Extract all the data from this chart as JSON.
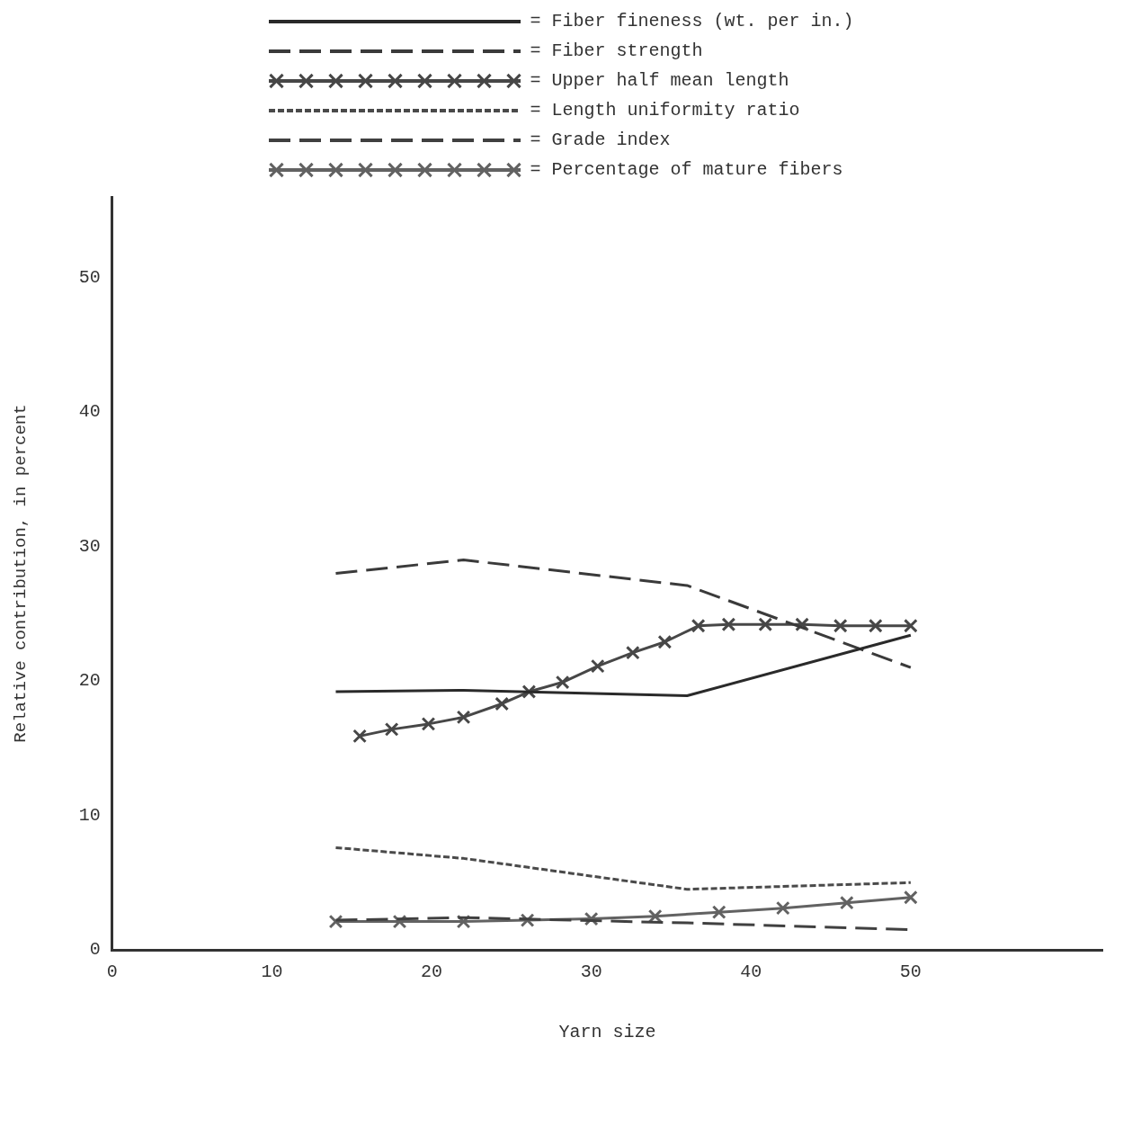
{
  "chart_data": {
    "type": "line",
    "xlabel": "Yarn size",
    "ylabel": "Relative contribution, in percent",
    "xlim": [
      0,
      62
    ],
    "ylim": [
      0,
      56
    ],
    "xticks": [
      0,
      10,
      20,
      30,
      40,
      50
    ],
    "yticks": [
      0,
      10,
      20,
      30,
      40,
      50
    ],
    "grid": false,
    "legend": "top",
    "series": [
      {
        "name": "= Fiber fineness (wt. per in.)",
        "color": "#2a2a2a",
        "line_style": "solid",
        "marker": "none",
        "x": [
          14,
          22,
          36,
          50
        ],
        "values": [
          19.2,
          19.3,
          18.9,
          23.4
        ]
      },
      {
        "name": "= Fiber strength",
        "color": "#3a3a3a",
        "line_style": "dashed",
        "marker": "none",
        "x": [
          14,
          22,
          36,
          50
        ],
        "values": [
          28,
          29,
          27.1,
          21
        ]
      },
      {
        "name": "= Upper half mean length",
        "color": "#474747",
        "line_style": "solid",
        "marker": "cross",
        "x": [
          15.5,
          17.5,
          19.8,
          22,
          24.4,
          26.1,
          28.2,
          30.4,
          32.6,
          34.6,
          36.7,
          38.6,
          40.9,
          43.2,
          45.6,
          47.8,
          50
        ],
        "values": [
          15.9,
          16.4,
          16.8,
          17.3,
          18.3,
          19.2,
          19.9,
          21.1,
          22.1,
          22.9,
          24.1,
          24.2,
          24.2,
          24.2,
          24.1,
          24.1,
          24.1
        ]
      },
      {
        "name": "= Length uniformity ratio",
        "color": "#4a4a4a",
        "line_style": "dotted",
        "marker": "none",
        "x": [
          14,
          22,
          36,
          50
        ],
        "values": [
          7.6,
          6.8,
          4.5,
          5
        ]
      },
      {
        "name": "= Grade index",
        "color": "#404040",
        "line_style": "dashed",
        "marker": "none",
        "x": [
          14,
          22,
          36,
          50
        ],
        "values": [
          2.2,
          2.4,
          2,
          1.5
        ]
      },
      {
        "name": "= Percentage of mature fibers",
        "color": "#626262",
        "line_style": "solid",
        "marker": "cross",
        "x": [
          14,
          18,
          22,
          26,
          30,
          34,
          38,
          42,
          46,
          50
        ],
        "values": [
          2.1,
          2.1,
          2.1,
          2.2,
          2.3,
          2.5,
          2.8,
          3.1,
          3.5,
          3.9
        ]
      }
    ]
  }
}
